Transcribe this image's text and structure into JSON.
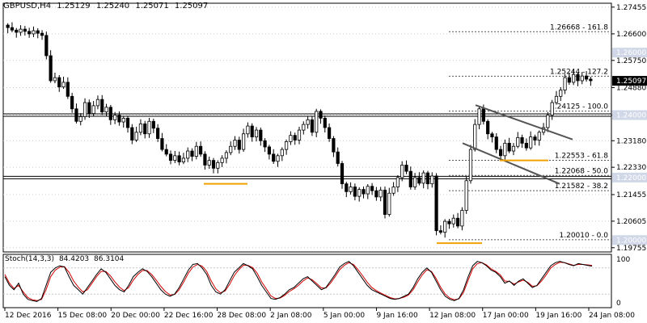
{
  "header": {
    "symbol": "GBPUSD,H4",
    "open": "1.25129",
    "high": "1.25240",
    "low": "1.25071",
    "close": "1.25097"
  },
  "stochastic": {
    "label": "Stoch(14,3,3)",
    "main_value": "84.4203",
    "signal_value": "86.3104",
    "levels": [
      100,
      80,
      20,
      0
    ]
  },
  "colors": {
    "bull_candle": "#ffffff",
    "bear_candle": "#000000",
    "grid": "#c8c8c8",
    "support_resistance": "#000000",
    "fib_level": "#555555",
    "orange_marker": "#f0a000",
    "price_badge": "#000000",
    "level_badge": "#d0d8e8",
    "stoch_main": "#000000",
    "stoch_signal": "#d00000"
  },
  "chart_data": {
    "type": "candlestick",
    "title": "GBPUSD,H4",
    "ylim": [
      1.1962,
      1.2758
    ],
    "y_ticks": [
      "1.27455",
      "1.26600",
      "1.25750",
      "1.24880",
      "1.24000",
      "1.23180",
      "1.22330",
      "1.21455",
      "1.20605",
      "1.19755"
    ],
    "x_ticks": [
      "12 Dec 2016",
      "15 Dec 08:00",
      "20 Dec 00:00",
      "22 Dec 16:00",
      "28 Dec 08:00",
      "2 Jan 08:00",
      "5 Jan 00:00",
      "9 Jan 16:00",
      "12 Jan 08:00",
      "17 Jan 00:00",
      "19 Jan 16:00",
      "24 Jan 08:00"
    ],
    "current_price": "1.25097",
    "highlighted_levels": [
      "1.26000",
      "1.24000",
      "1.22000",
      "1.20000"
    ],
    "horizontal_lines": [
      1.24,
      1.22
    ],
    "fibonacci_levels": [
      {
        "price": 1.26668,
        "label": "1.26668 - 161.8"
      },
      {
        "price": 1.25244,
        "label": "1.25244 - 127.2"
      },
      {
        "price": 1.24125,
        "label": "1.24125 - 100.0"
      },
      {
        "price": 1.22553,
        "label": "1.22553 - 61.8"
      },
      {
        "price": 1.22068,
        "label": "1.22068 - 50.0"
      },
      {
        "price": 1.21582,
        "label": "1.21582 - 38.2"
      },
      {
        "price": 1.2001,
        "label": "1.20010 - 0.0"
      }
    ],
    "close_path": [
      1.268,
      1.2672,
      1.2665,
      1.2675,
      1.2668,
      1.266,
      1.267,
      1.2662,
      1.2655,
      1.259,
      1.251,
      1.252,
      1.249,
      1.2505,
      1.246,
      1.242,
      1.238,
      1.2395,
      1.244,
      1.2405,
      1.243,
      1.245,
      1.241,
      1.2425,
      1.2385,
      1.24,
      1.2378,
      1.239,
      1.236,
      1.232,
      1.2345,
      1.2372,
      1.234,
      1.238,
      1.2358,
      1.2325,
      1.229,
      1.2275,
      1.2255,
      1.227,
      1.225,
      1.2262,
      1.2285,
      1.2268,
      1.23,
      1.2275,
      1.224,
      1.2255,
      1.223,
      1.2248,
      1.2262,
      1.228,
      1.23,
      1.232,
      1.229,
      1.234,
      1.2365,
      1.233,
      1.2352,
      1.2318,
      1.2298,
      1.2275,
      1.2252,
      1.227,
      1.229,
      1.2315,
      1.2335,
      1.232,
      1.2352,
      1.237,
      1.2385,
      1.2345,
      1.2412,
      1.239,
      1.236,
      1.2325,
      1.2282,
      1.2245,
      1.218,
      1.2155,
      1.217,
      1.214,
      1.2162,
      1.2148,
      1.2172,
      1.2158,
      1.2138,
      1.216,
      1.2082,
      1.215,
      1.217,
      1.22,
      1.224,
      1.222,
      1.217,
      1.22,
      1.2182,
      1.2215,
      1.218,
      1.2205,
      1.203,
      1.2025,
      1.206,
      1.2052,
      1.207,
      1.2045,
      1.2095,
      1.219,
      1.229,
      1.237,
      1.242,
      1.238,
      1.234,
      1.233,
      1.229,
      1.227,
      1.231,
      1.2285,
      1.23,
      1.2328,
      1.231,
      1.2295,
      1.233,
      1.232,
      1.2345,
      1.236,
      1.24,
      1.244,
      1.246,
      1.248,
      1.252,
      1.2505,
      1.253,
      1.251,
      1.2525,
      1.2515,
      1.251
    ],
    "stoch_main_path": [
      60,
      40,
      30,
      45,
      20,
      8,
      5,
      3,
      10,
      40,
      70,
      80,
      85,
      82,
      60,
      40,
      30,
      20,
      35,
      50,
      65,
      78,
      70,
      55,
      40,
      30,
      25,
      40,
      60,
      70,
      78,
      72,
      60,
      45,
      30,
      20,
      15,
      20,
      35,
      55,
      75,
      88,
      90,
      80,
      65,
      40,
      25,
      20,
      30,
      50,
      70,
      80,
      90,
      85,
      78,
      60,
      40,
      25,
      10,
      8,
      12,
      20,
      30,
      35,
      45,
      55,
      60,
      50,
      40,
      30,
      35,
      50,
      65,
      82,
      90,
      95,
      85,
      70,
      55,
      40,
      30,
      25,
      20,
      15,
      10,
      8,
      10,
      15,
      20,
      35,
      55,
      70,
      80,
      70,
      50,
      30,
      15,
      8,
      5,
      10,
      30,
      60,
      85,
      95,
      92,
      85,
      75,
      70,
      60,
      45,
      50,
      40,
      50,
      55,
      45,
      35,
      40,
      55,
      70,
      85,
      92,
      95,
      92,
      88,
      85,
      90,
      88,
      86,
      84
    ],
    "stoch_signal_path": [
      65,
      45,
      33,
      40,
      25,
      12,
      7,
      5,
      8,
      30,
      60,
      75,
      82,
      83,
      70,
      50,
      36,
      25,
      30,
      45,
      60,
      72,
      72,
      62,
      48,
      36,
      28,
      35,
      52,
      65,
      74,
      74,
      65,
      52,
      38,
      26,
      18,
      19,
      30,
      48,
      68,
      82,
      88,
      84,
      72,
      50,
      32,
      23,
      27,
      42,
      62,
      76,
      86,
      86,
      81,
      68,
      48,
      32,
      16,
      10,
      11,
      17,
      26,
      32,
      40,
      50,
      57,
      53,
      44,
      34,
      34,
      45,
      60,
      76,
      86,
      92,
      88,
      76,
      62,
      47,
      35,
      28,
      22,
      17,
      12,
      9,
      10,
      13,
      18,
      30,
      48,
      64,
      76,
      72,
      56,
      36,
      20,
      11,
      7,
      9,
      24,
      52,
      78,
      90,
      92,
      87,
      78,
      72,
      64,
      50,
      49,
      43,
      48,
      52,
      47,
      38,
      39,
      50,
      64,
      80,
      88,
      93,
      92,
      89,
      86,
      88,
      88,
      87,
      86
    ]
  }
}
